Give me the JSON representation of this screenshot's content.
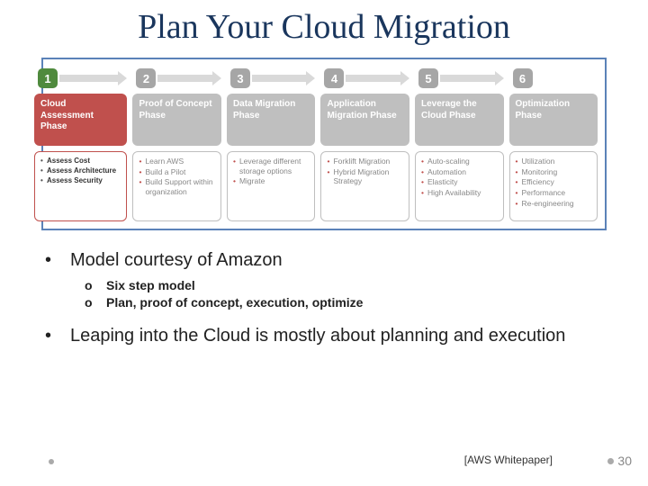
{
  "title": "Plan Your Cloud Migration",
  "diagram": {
    "border_color": "#5b82b8",
    "phases": [
      {
        "num": "1",
        "badge_color": "#4f8a3d",
        "title_bg": "#c0504d",
        "title": "Cloud Assessment Phase",
        "bullets": [
          "Assess Cost",
          "Assess Architecture",
          "Assess Security"
        ]
      },
      {
        "num": "2",
        "badge_color": "#a6a6a6",
        "title_bg": "#bfbfbf",
        "title": "Proof of Concept Phase",
        "bullets": [
          "Learn AWS",
          "Build a Pilot",
          "Build Support within organization"
        ]
      },
      {
        "num": "3",
        "badge_color": "#a6a6a6",
        "title_bg": "#bfbfbf",
        "title": "Data Migration Phase",
        "bullets": [
          "Leverage different storage options",
          "Migrate"
        ]
      },
      {
        "num": "4",
        "badge_color": "#a6a6a6",
        "title_bg": "#bfbfbf",
        "title": "Application Migration Phase",
        "bullets": [
          "Forklift Migration",
          "Hybrid Migration Strategy"
        ]
      },
      {
        "num": "5",
        "badge_color": "#a6a6a6",
        "title_bg": "#bfbfbf",
        "title": "Leverage the Cloud Phase",
        "bullets": [
          "Auto-scaling",
          "Automation",
          "Elasticity",
          "High Availability"
        ]
      },
      {
        "num": "6",
        "badge_color": "#a6a6a6",
        "title_bg": "#bfbfbf",
        "title": "Optimization Phase",
        "bullets": [
          "Utilization",
          "Monitoring",
          "Efficiency",
          "Performance",
          "Re-engineering"
        ]
      }
    ]
  },
  "body": {
    "b1": "Model courtesy of Amazon",
    "s1": "Six step model",
    "s2": "Plan, proof of concept, execution, optimize",
    "b2": "Leaping into the Cloud is mostly about planning and execution"
  },
  "citation": "[AWS Whitepaper]",
  "page": "30"
}
